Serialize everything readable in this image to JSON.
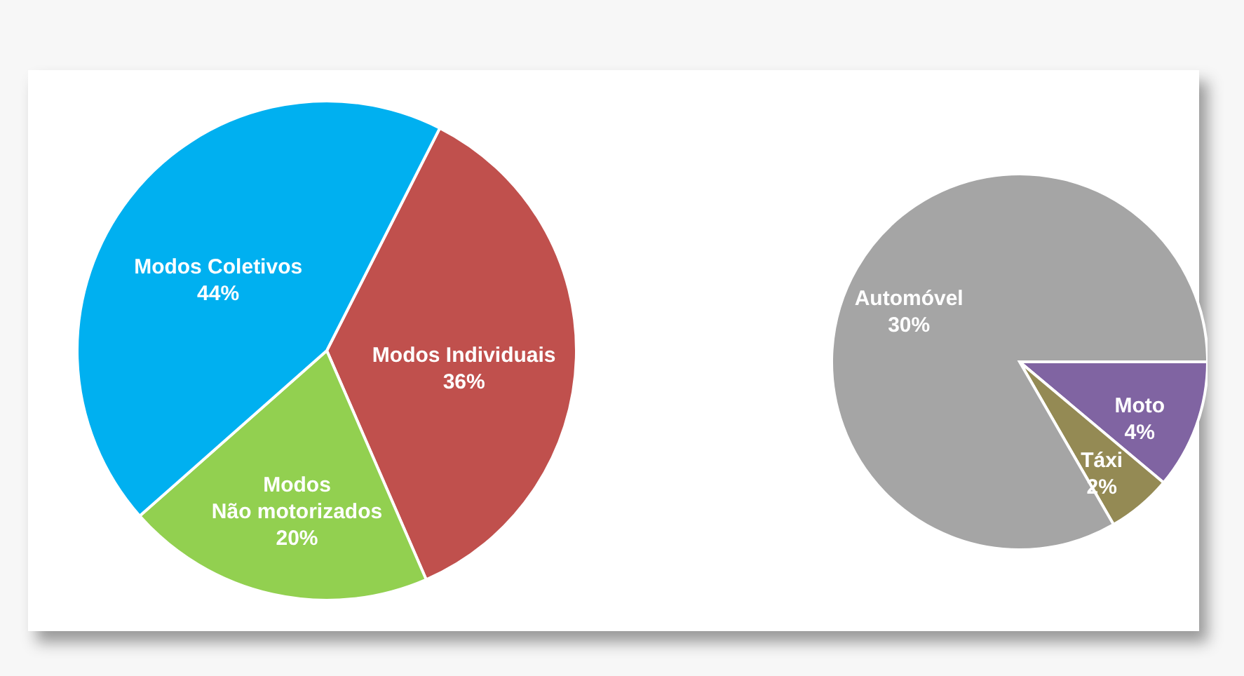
{
  "chart_data": [
    {
      "type": "pie",
      "categories": [
        "Modos Individuais",
        "Modos Não motorizados",
        "Modos Coletivos"
      ],
      "values": [
        36,
        20,
        44
      ],
      "colors": [
        "#c0504d",
        "#92d050",
        "#00b0f0"
      ],
      "value_labels": [
        "36%",
        "20%",
        "44%"
      ]
    },
    {
      "type": "pie",
      "categories": [
        "Moto",
        "Táxi",
        "Automóvel"
      ],
      "values": [
        4,
        2,
        30
      ],
      "colors": [
        "#8064a2",
        "#948a54",
        "#a5a5a5"
      ],
      "value_labels": [
        "4%",
        "2%",
        "30%"
      ]
    }
  ]
}
